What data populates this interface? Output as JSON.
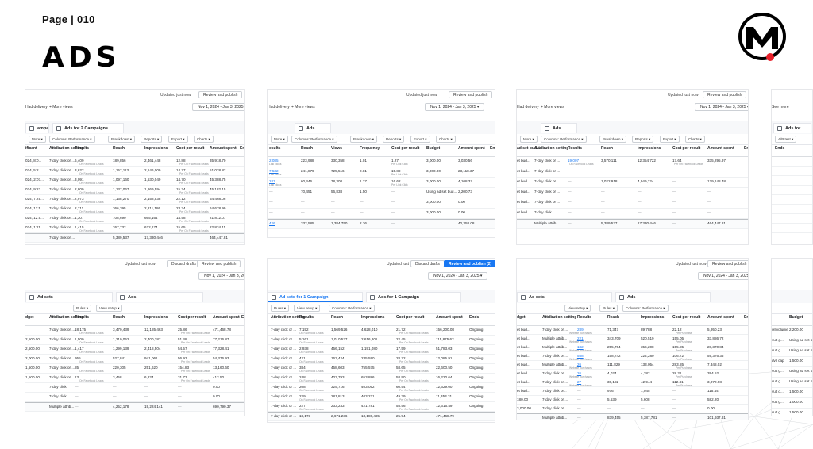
{
  "page": {
    "label": "Page | 010",
    "title": "ADS",
    "logo_letter": "M",
    "accent": "#e8202a"
  },
  "common": {
    "updated": "Updated just now",
    "review": "Review and publish",
    "discard": "Discard drafts",
    "review_count": "Review and publish (2)",
    "date_range": "Nov 1, 2024 - Jan 3, 2025",
    "had_delivery": "Had delivery",
    "more_views": "+ More views",
    "see_more": "See more"
  },
  "top_cards": [
    {
      "tabs": [
        "ampaigns",
        "Ads for 2 Campaigns"
      ],
      "toolbar": [
        "More",
        "Columns: Performance",
        "Breakdown",
        "Reports",
        "Export",
        "Charts"
      ],
      "headers": [
        "ificant",
        "Attribution setting",
        "Results",
        "Reach",
        "Impressions",
        "Cost per result",
        "Amount spent",
        "Ends"
      ],
      "rows": [
        [
          "024, 8:0...",
          "7-day click or ...",
          "6,409",
          "189,856",
          "2,461,448",
          "12.88",
          "35,918.70",
          ""
        ],
        [
          "024, 5:2...",
          "7-day click or ...",
          "3,622",
          "1,157,113",
          "2,146,009",
          "14.77",
          "51,028.82",
          ""
        ],
        [
          "024, 2:07...",
          "7-day click or ...",
          "3,091",
          "1,097,160",
          "1,530,049",
          "14.70",
          "45,388.75",
          ""
        ],
        [
          "024, 9:23...",
          "7-day click or ...",
          "2,809",
          "1,137,067",
          "1,869,594",
          "15.24",
          "45,182.15",
          ""
        ],
        [
          "024, 7:25...",
          "7-day click or ...",
          "2,973",
          "1,168,270",
          "2,158,538",
          "22.12",
          "64,468.06",
          ""
        ],
        [
          "024, 12:5...",
          "7-day click or ...",
          "2,711",
          "366,395",
          "2,211,186",
          "23.34",
          "64,678.99",
          ""
        ],
        [
          "024, 12:5...",
          "7-day click or ...",
          "1,307",
          "708,690",
          "665,164",
          "14.58",
          "21,812.07",
          ""
        ],
        [
          "024, 1:11...",
          "7-day click or ...",
          "1,415",
          "267,732",
          "622,174",
          "15.65",
          "22,834.11",
          ""
        ],
        [
          "",
          "7-day click or ...",
          "",
          "5,389,537",
          "17,330,446",
          "",
          "464,447.81",
          ""
        ]
      ],
      "sub": [
        "On Facebook Leads",
        "Per On Facebook Leads"
      ]
    },
    {
      "tabs": [
        "Ads"
      ],
      "toolbar": [
        "More",
        "Columns: Performance",
        "Breakdown",
        "Reports",
        "Export",
        "Charts"
      ],
      "headers": [
        "esults",
        "Reach",
        "Views",
        "Frequency",
        "Cost per result",
        "Budget",
        "Amount spent",
        "Ends"
      ],
      "rows": [
        [
          "2,085",
          "223,988",
          "330,358",
          "1.01",
          "1.27",
          "3,000.00",
          "3,030.56",
          ""
        ],
        [
          "7,532",
          "241,879",
          "725,516",
          "2.81",
          "15.89",
          "3,000.00",
          "23,118.37",
          ""
        ],
        [
          "247",
          "60,446",
          "78,308",
          "1.27",
          "16.62",
          "3,000.00",
          "4,108.37",
          ""
        ],
        [
          "—",
          "70,451",
          "56,838",
          "1.50",
          "—",
          "Using ad set bud...",
          "2,200.73",
          ""
        ],
        [
          "—",
          "—",
          "—",
          "—",
          "—",
          "3,000.00",
          "0.00",
          ""
        ],
        [
          "—",
          "—",
          "—",
          "—",
          "—",
          "3,000.00",
          "0.00",
          ""
        ],
        [
          "426",
          "332,585",
          "1,384,750",
          "2.36",
          "—",
          "",
          "40,358.08",
          ""
        ]
      ],
      "sub": [
        "Link clicks",
        "Per Link Click"
      ]
    },
    {
      "tabs": [
        "Ads"
      ],
      "toolbar": [
        "More",
        "Columns: Performance",
        "Breakdown",
        "Reports",
        "Export",
        "Charts"
      ],
      "headers": [
        "ad set bud...",
        "Attribution setting",
        "Results",
        "Reach",
        "Impressions",
        "Cost per result",
        "Amount spent",
        "Ends"
      ],
      "rows": [
        [
          "et bud...",
          "7-day click or ...",
          "19,007",
          "3,570,111",
          "12,354,722",
          "17.64",
          "335,295.97",
          ""
        ],
        [
          "et bud...",
          "7-day click or ...",
          "—",
          "—",
          "—",
          "—",
          "—",
          ""
        ],
        [
          "et bud...",
          "7-day click or ...",
          "—",
          "1,022,918",
          "4,949,724",
          "—",
          "129,148.48",
          ""
        ],
        [
          "et bud...",
          "7-day click or ...",
          "—",
          "—",
          "—",
          "—",
          "—",
          ""
        ],
        [
          "et bud...",
          "7-day click or ...",
          "—",
          "—",
          "—",
          "—",
          "—",
          ""
        ],
        [
          "et bud...",
          "7-day click",
          "—",
          "—",
          "—",
          "—",
          "—",
          ""
        ],
        [
          "",
          "Multiple attrib...",
          "—",
          "5,389,537",
          "17,330,446",
          "—",
          "464,447.81",
          ""
        ]
      ],
      "sub": [
        "On Facebook Leads",
        "Per On Facebook Leads"
      ]
    },
    {
      "tabs": [
        "Ads for"
      ],
      "toolbar": [
        "A/B test"
      ],
      "headers": [
        "Ends"
      ],
      "rows": [
        [
          ""
        ],
        [
          ""
        ],
        [
          ""
        ],
        [
          ""
        ],
        [
          ""
        ],
        [
          ""
        ],
        [
          ""
        ],
        [
          ""
        ]
      ],
      "sub": []
    }
  ],
  "bottom_cards": [
    {
      "tabs": [
        "Ad sets",
        "Ads"
      ],
      "toolbar": [
        "Rules",
        "View setup"
      ],
      "headers": [
        "dget",
        "Attribution setting",
        "Results",
        "Reach",
        "Impressions",
        "Cost per result",
        "Amount spent",
        "Ends"
      ],
      "rows": [
        [
          "",
          "7-day click or ...",
          "18,175",
          "3,470,439",
          "12,185,463",
          "25.86",
          "471,468.78",
          ""
        ],
        [
          "2,500.00",
          "7-day click or ...",
          "1,500",
          "1,210,052",
          "2,400,787",
          "51.48",
          "77,216.87",
          ""
        ],
        [
          "2,500.00",
          "7-day click or ...",
          "1,417",
          "1,299,139",
          "2,418,504",
          "54.57",
          "77,328.41",
          ""
        ],
        [
          "2,000.00",
          "7-day click or ...",
          "955",
          "527,841",
          "941,061",
          "56.93",
          "54,376.93",
          ""
        ],
        [
          "1,500.00",
          "7-day click or ...",
          "85",
          "220,305",
          "251,620",
          "154.83",
          "13,160.60",
          ""
        ],
        [
          "1,500.00",
          "7-day click or ...",
          "13",
          "3,458",
          "6,224",
          "31.73",
          "412.50",
          ""
        ],
        [
          "",
          "7-day click",
          "—",
          "—",
          "—",
          "—",
          "0.00",
          ""
        ],
        [
          "",
          "7-day click",
          "—",
          "—",
          "—",
          "—",
          "0.00",
          ""
        ],
        [
          "",
          "Multiple attrib...",
          "—",
          "4,252,178",
          "19,224,141",
          "—",
          "690,790.37",
          ""
        ]
      ],
      "sub": [
        "On Facebook Leads",
        "Per On Facebook Leads"
      ]
    },
    {
      "tabs": [
        "Ad sets for 1 Campaign",
        "Ads for 1 Campaign"
      ],
      "toolbar": [
        "Rules",
        "View setup",
        "Columns: Performance"
      ],
      "headers": [
        "Attribution setting",
        "Results",
        "Reach",
        "Impressions",
        "Cost per result",
        "Amount spent",
        "Ends"
      ],
      "rows": [
        [
          "7-day click or ...",
          "7,192",
          "1,569,526",
          "4,628,010",
          "21.72",
          "156,200.08",
          "Ongoing"
        ],
        [
          "7-day click or ...",
          "5,161",
          "1,010,537",
          "2,616,801",
          "22.45",
          "115,875.62",
          "Ongoing"
        ],
        [
          "7-day click or ...",
          "2,938",
          "456,152",
          "1,191,080",
          "17.59",
          "51,783.03",
          "Ongoing"
        ],
        [
          "7-day click or ...",
          "421",
          "163,424",
          "235,590",
          "28.72",
          "12,085.91",
          "Ongoing"
        ],
        [
          "7-day click or ...",
          "384",
          "458,603",
          "755,575",
          "58.65",
          "22,600.50",
          "Ongoing"
        ],
        [
          "7-day click or ...",
          "248",
          "403,793",
          "653,886",
          "58.90",
          "16,220.64",
          "Ongoing"
        ],
        [
          "7-day click or ...",
          "208",
          "325,716",
          "403,052",
          "60.54",
          "12,629.00",
          "Ongoing"
        ],
        [
          "7-day click or ...",
          "229",
          "281,813",
          "403,221",
          "49.39",
          "11,353.31",
          "Ongoing"
        ],
        [
          "7-day click or ...",
          "227",
          "233,233",
          "421,781",
          "55.56",
          "12,616.49",
          "Ongoing"
        ],
        [
          "7-day click or ...",
          "18,173",
          "2,671,236",
          "13,180,485",
          "25.94",
          "471,468.79",
          ""
        ]
      ],
      "sub": [
        "On Facebook Leads",
        "Per On Facebook Leads"
      ]
    },
    {
      "tabs": [
        "Ad sets",
        "Ads"
      ],
      "toolbar": [
        "View setup",
        "Rules",
        "Columns: Performance"
      ],
      "headers": [
        "dget",
        "Attribution setting",
        "Results",
        "Reach",
        "Impressions",
        "Cost per result",
        "Amount spent",
        "Ends"
      ],
      "rows": [
        [
          "et bud...",
          "7-day click or ...",
          "289",
          "71,347",
          "89,788",
          "22.12",
          "5,950.23",
          ""
        ],
        [
          "et bud...",
          "Multiple attrib...",
          "221",
          "343,709",
          "520,519",
          "155.05",
          "33,886.72",
          ""
        ],
        [
          "et bud...",
          "Multiple attrib...",
          "182",
          "255,704",
          "356,208",
          "155.85",
          "28,370.84",
          ""
        ],
        [
          "et bud...",
          "7-day click or ...",
          "558",
          "158,742",
          "224,280",
          "106.72",
          "59,376.36",
          ""
        ],
        [
          "et bud...",
          "Multiple attrib...",
          "26",
          "111,829",
          "133,054",
          "283.85",
          "7,348.02",
          ""
        ],
        [
          "et bud...",
          "7-day click or ...",
          "26",
          "4,024",
          "4,282",
          "28.21",
          "394.52",
          ""
        ],
        [
          "et bud...",
          "7-day click or ...",
          "27",
          "30,182",
          "42,944",
          "112.81",
          "3,072.98",
          ""
        ],
        [
          "et bud...",
          "7-day click or...",
          "—",
          "976",
          "1,045",
          "—",
          "115.44",
          ""
        ],
        [
          "180.00",
          "7-day click or ...",
          "—",
          "5,539",
          "5,608",
          "—",
          "582.20",
          ""
        ],
        [
          "3,000.00",
          "7-day click or ...",
          "—",
          "—",
          "—",
          "—",
          "0.00",
          ""
        ],
        [
          "",
          "Multiple attrib...",
          "—",
          "839,455",
          "5,387,781",
          "—",
          "101,937.81",
          ""
        ]
      ],
      "sub": [
        "Website purchases",
        "Per Purchase"
      ]
    },
    {
      "tabs": [],
      "toolbar": [],
      "headers": [
        "Budget"
      ],
      "rows": [
        [
          "2,200.00"
        ],
        [
          "Using ad set bud..."
        ],
        [
          "Using ad set bud..."
        ],
        [
          "1,500.00"
        ],
        [
          "Using ad set bud..."
        ],
        [
          "Using ad set bud..."
        ],
        [
          "1,500.00"
        ],
        [
          "1,000.00"
        ],
        [
          "1,500.00"
        ],
        [
          "Using ad set bud..."
        ]
      ],
      "rowlabels": [
        "oll volume",
        "vult g...",
        "vult g...",
        "dvil cap",
        "vult g...",
        "vult g...",
        "vult g...",
        "vult g...",
        "vult g...",
        "vult g..."
      ],
      "sub": []
    }
  ]
}
